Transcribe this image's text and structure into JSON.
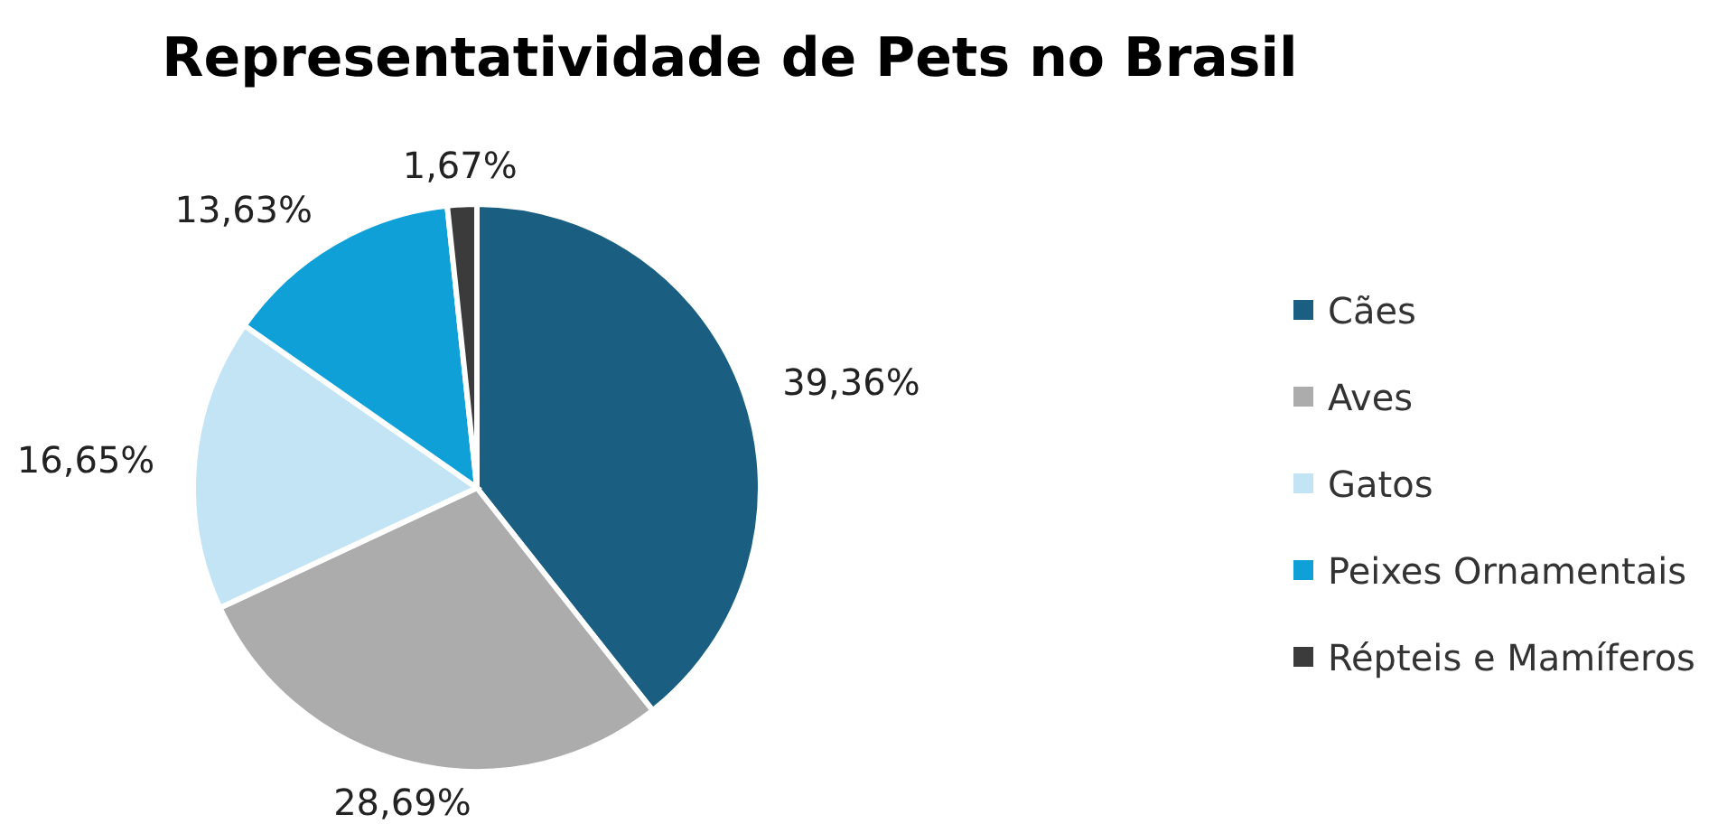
{
  "chart_data": {
    "type": "pie",
    "title": "Representatividade de Pets no Brasil",
    "categories": [
      "Cães",
      "Aves",
      "Gatos",
      "Peixes Ornamentais",
      "Répteis e Mamíferos"
    ],
    "values": [
      39.36,
      28.69,
      16.65,
      13.63,
      1.67
    ],
    "colors": [
      "#1a5f82",
      "#acacac",
      "#c2e4f4",
      "#0fa0d8",
      "#3b3b3b"
    ],
    "value_labels": [
      "39,36%",
      "28,69%",
      "16,65%",
      "13,63%",
      "1,67%"
    ],
    "legend": "right"
  }
}
